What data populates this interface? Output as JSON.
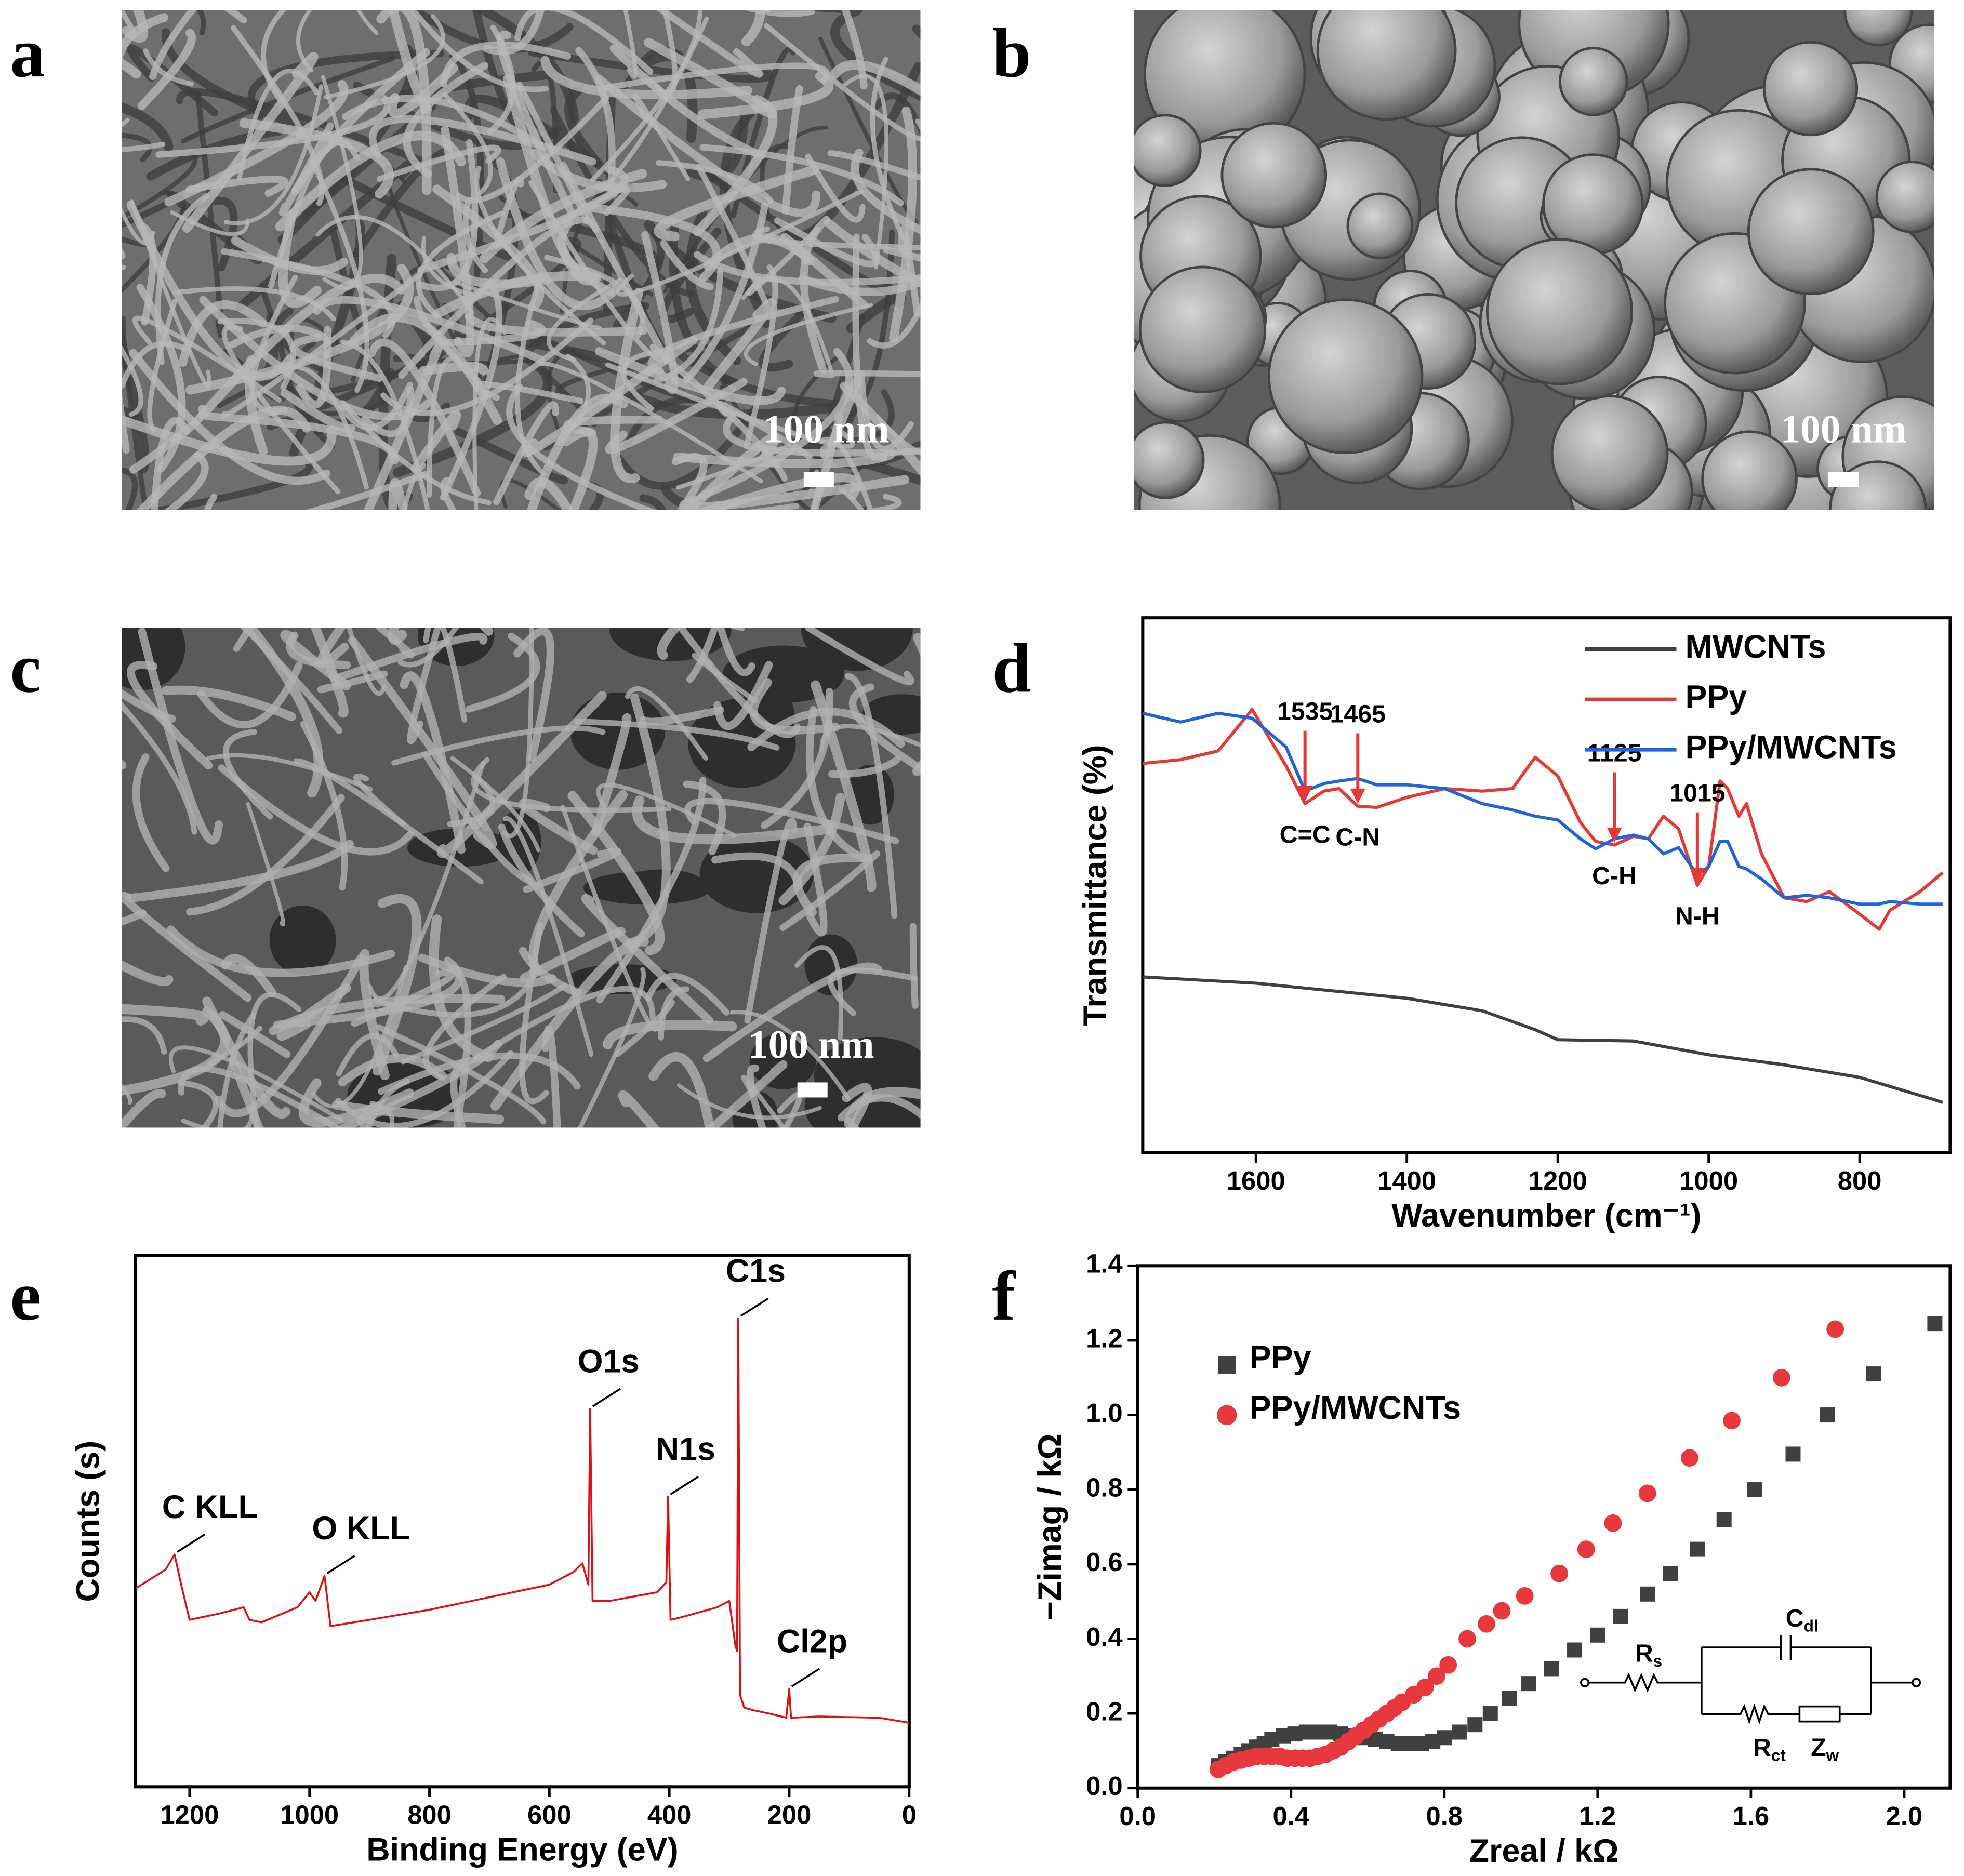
{
  "panels": [
    {
      "label": "a",
      "scale_bar": "100 nm"
    },
    {
      "label": "b",
      "scale_bar": "100 nm"
    },
    {
      "label": "c",
      "scale_bar": "100 nm"
    }
  ],
  "chart_data": [
    {
      "type": "line",
      "panel_label": "d",
      "xlabel": "Wavenumber (cm⁻¹)",
      "ylabel": "Transmittance (%)",
      "xlim": [
        1750,
        680
      ],
      "ylim": [
        0,
        426
      ],
      "xticks": [
        1600,
        1400,
        1200,
        1000,
        800
      ],
      "legend": "upper right",
      "annotation_style": "arrow",
      "series": [
        {
          "name": "MWCNTs",
          "color": "#404040",
          "x": [
            1750,
            1600,
            1400,
            1300,
            1230,
            1200,
            1100,
            1000,
            900,
            800,
            700,
            690
          ],
          "values": [
            140,
            135,
            123,
            113,
            98,
            90,
            89,
            78,
            70,
            60,
            42,
            40
          ]
        },
        {
          "name": "PPy",
          "color": "#e53935",
          "x": [
            1750,
            1700,
            1650,
            1605,
            1560,
            1535,
            1510,
            1490,
            1465,
            1440,
            1400,
            1350,
            1300,
            1260,
            1230,
            1200,
            1170,
            1150,
            1125,
            1100,
            1080,
            1060,
            1040,
            1015,
            1000,
            985,
            975,
            960,
            950,
            930,
            900,
            870,
            840,
            800,
            774,
            760,
            720,
            690
          ],
          "values": [
            310,
            313,
            320,
            353,
            308,
            278,
            288,
            290,
            276,
            275,
            283,
            290,
            288,
            290,
            315,
            300,
            263,
            248,
            245,
            252,
            250,
            268,
            258,
            213,
            228,
            296,
            290,
            268,
            278,
            238,
            203,
            200,
            208,
            190,
            178,
            193,
            208,
            223
          ]
        },
        {
          "name": "PPy/MWCNTs",
          "color": "#1e64e0",
          "x": [
            1750,
            1700,
            1650,
            1605,
            1560,
            1535,
            1510,
            1490,
            1465,
            1440,
            1400,
            1350,
            1300,
            1260,
            1230,
            1200,
            1170,
            1150,
            1125,
            1100,
            1080,
            1060,
            1040,
            1015,
            1000,
            985,
            975,
            960,
            950,
            930,
            900,
            870,
            840,
            800,
            774,
            760,
            720,
            690
          ],
          "values": [
            350,
            343,
            350,
            346,
            323,
            288,
            294,
            296,
            298,
            293,
            293,
            290,
            278,
            273,
            268,
            265,
            250,
            242,
            250,
            253,
            250,
            238,
            243,
            221,
            228,
            248,
            248,
            228,
            226,
            218,
            203,
            205,
            203,
            198,
            198,
            200,
            198,
            198
          ]
        }
      ],
      "annotations": [
        {
          "x": 1535,
          "text": "C=C"
        },
        {
          "x": 1465,
          "text": "C-N"
        },
        {
          "x": 1125,
          "text": "C-H"
        },
        {
          "x": 1015,
          "text": "N-H"
        }
      ]
    },
    {
      "type": "line",
      "panel_label": "e",
      "xlabel": "Binding Energy (eV)",
      "ylabel": "Counts (s)",
      "xlim": [
        1290,
        0
      ],
      "ylim": [
        0,
        423
      ],
      "xticks": [
        1200,
        1000,
        800,
        600,
        400,
        200,
        0
      ],
      "annotation_style": "leader",
      "series": [
        {
          "color": "#e01010",
          "x": [
            1290,
            1240,
            1225,
            1215,
            1200,
            1150,
            1110,
            1100,
            1080,
            1020,
            1000,
            990,
            975,
            965,
            900,
            800,
            700,
            600,
            560,
            545,
            535,
            532,
            528,
            500,
            420,
            405,
            402,
            398,
            380,
            320,
            300,
            290,
            287,
            285,
            282,
            275,
            260,
            230,
            205,
            200,
            197,
            150,
            50,
            0
          ],
          "values": [
            158,
            173,
            185,
            163,
            133,
            138,
            143,
            133,
            131,
            143,
            155,
            148,
            168,
            128,
            133,
            141,
            151,
            161,
            171,
            178,
            161,
            301,
            148,
            148,
            155,
            163,
            231,
            133,
            135,
            143,
            148,
            113,
            108,
            373,
            73,
            63,
            61,
            58,
            55,
            78,
            55,
            56,
            55,
            51
          ]
        }
      ],
      "annotations": [
        {
          "x": 1225,
          "text": "C KLL"
        },
        {
          "x": 975,
          "text": "O KLL"
        },
        {
          "x": 532,
          "text": "O1s"
        },
        {
          "x": 402,
          "text": "N1s"
        },
        {
          "x": 285,
          "text": "C1s"
        },
        {
          "x": 200,
          "text": "Cl2p"
        }
      ]
    },
    {
      "type": "scatter",
      "panel_label": "f",
      "xlabel": "Zreal / kΩ",
      "ylabel": "−Zimag / kΩ",
      "xlim": [
        0,
        2.12
      ],
      "ylim": [
        0,
        1.4
      ],
      "legend": "upper left",
      "xticks": [
        {
          "value": 0,
          "label": "0.0"
        },
        {
          "value": 0.4,
          "label": "0.4"
        },
        {
          "value": 0.8,
          "label": "0.8"
        },
        {
          "value": 1.2,
          "label": "1.2"
        },
        {
          "value": 1.6,
          "label": "1.6"
        },
        {
          "value": 2,
          "label": "2.0"
        }
      ],
      "yticks": [
        {
          "value": 0,
          "label": "0.0"
        },
        {
          "value": 0.2,
          "label": "0.2"
        },
        {
          "value": 0.4,
          "label": "0.4"
        },
        {
          "value": 0.6,
          "label": "0.6"
        },
        {
          "value": 0.8,
          "label": "0.8"
        },
        {
          "value": 1,
          "label": "1.0"
        },
        {
          "value": 1.2,
          "label": "1.2"
        },
        {
          "value": 1.4,
          "label": "1.4"
        }
      ],
      "series": [
        {
          "name": "PPy",
          "color": "#404040",
          "marker": "square",
          "x": [
            0.21,
            0.23,
            0.25,
            0.27,
            0.29,
            0.31,
            0.33,
            0.35,
            0.38,
            0.41,
            0.44,
            0.47,
            0.5,
            0.53,
            0.56,
            0.59,
            0.62,
            0.65,
            0.68,
            0.71,
            0.74,
            0.77,
            0.8,
            0.84,
            0.88,
            0.92,
            0.97,
            1.02,
            1.08,
            1.14,
            1.2,
            1.26,
            1.33,
            1.39,
            1.46,
            1.53,
            1.61,
            1.71,
            1.8,
            1.92,
            2.08
          ],
          "values": [
            0.06,
            0.07,
            0.08,
            0.09,
            0.1,
            0.11,
            0.12,
            0.13,
            0.14,
            0.145,
            0.15,
            0.15,
            0.15,
            0.145,
            0.14,
            0.135,
            0.13,
            0.125,
            0.12,
            0.12,
            0.12,
            0.125,
            0.135,
            0.15,
            0.17,
            0.2,
            0.24,
            0.28,
            0.32,
            0.37,
            0.41,
            0.46,
            0.52,
            0.575,
            0.64,
            0.72,
            0.8,
            0.895,
            1,
            1.11,
            1.245
          ]
        },
        {
          "name": "PPy/MWCNTs",
          "color": "#e8383d",
          "marker": "circle",
          "x": [
            0.21,
            0.23,
            0.25,
            0.27,
            0.29,
            0.31,
            0.33,
            0.35,
            0.37,
            0.39,
            0.41,
            0.43,
            0.45,
            0.47,
            0.49,
            0.51,
            0.53,
            0.55,
            0.57,
            0.59,
            0.61,
            0.63,
            0.65,
            0.67,
            0.69,
            0.72,
            0.75,
            0.78,
            0.81,
            0.86,
            0.91,
            0.95,
            1.01,
            1.1,
            1.17,
            1.24,
            1.33,
            1.44,
            1.55,
            1.68,
            1.82
          ],
          "values": [
            0.05,
            0.06,
            0.07,
            0.075,
            0.08,
            0.085,
            0.085,
            0.085,
            0.085,
            0.08,
            0.08,
            0.08,
            0.08,
            0.085,
            0.09,
            0.1,
            0.11,
            0.125,
            0.14,
            0.155,
            0.17,
            0.185,
            0.2,
            0.215,
            0.23,
            0.25,
            0.27,
            0.3,
            0.33,
            0.4,
            0.44,
            0.475,
            0.515,
            0.575,
            0.64,
            0.71,
            0.79,
            0.885,
            0.985,
            1.1,
            1.23
          ]
        }
      ],
      "inset": {
        "components": [
          {
            "symbol": "R",
            "subscript": "s"
          },
          {
            "symbol": "C",
            "subscript": "dl"
          },
          {
            "symbol": "R",
            "subscript": "ct"
          },
          {
            "symbol": "Z",
            "subscript": "w"
          }
        ]
      }
    }
  ]
}
